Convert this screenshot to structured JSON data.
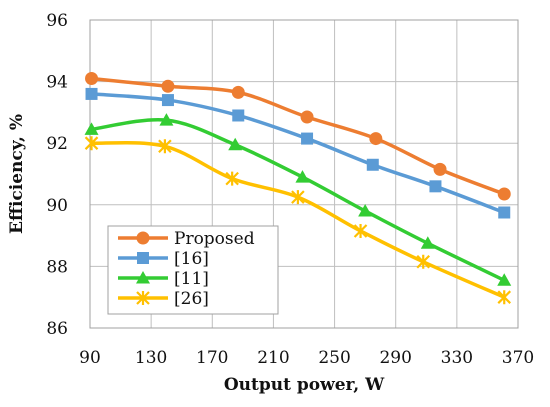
{
  "chart_data": {
    "type": "line",
    "xlabel": "Output power, W",
    "ylabel": "Efficiency, %",
    "xlim": [
      90,
      370
    ],
    "ylim": [
      86,
      96
    ],
    "xticks": [
      90,
      130,
      170,
      210,
      250,
      290,
      330,
      370
    ],
    "yticks": [
      86,
      88,
      90,
      92,
      94,
      96
    ],
    "grid": true,
    "legend_position": "bottom-left",
    "series": [
      {
        "name": "Proposed",
        "color": "#ED7D31",
        "marker": "circle",
        "x": [
          91,
          141,
          187,
          232,
          277,
          319,
          361
        ],
        "y": [
          94.1,
          93.85,
          93.65,
          92.85,
          92.15,
          91.15,
          90.35
        ]
      },
      {
        "name": "[16]",
        "color": "#5B9BD5",
        "marker": "square",
        "x": [
          91,
          141,
          187,
          232,
          275,
          316,
          361
        ],
        "y": [
          93.6,
          93.4,
          92.9,
          92.15,
          91.3,
          90.6,
          89.75
        ]
      },
      {
        "name": "[11]",
        "color": "#33CC33",
        "marker": "triangle",
        "x": [
          91,
          140,
          185,
          229,
          270,
          311,
          361
        ],
        "y": [
          92.45,
          92.75,
          91.95,
          90.9,
          89.8,
          88.75,
          87.55
        ]
      },
      {
        "name": "[26]",
        "color": "#FFC000",
        "marker": "star",
        "x": [
          91,
          139,
          183,
          226,
          267,
          308,
          361
        ],
        "y": [
          92.0,
          91.9,
          90.85,
          90.25,
          89.15,
          88.15,
          87.0
        ]
      }
    ]
  }
}
